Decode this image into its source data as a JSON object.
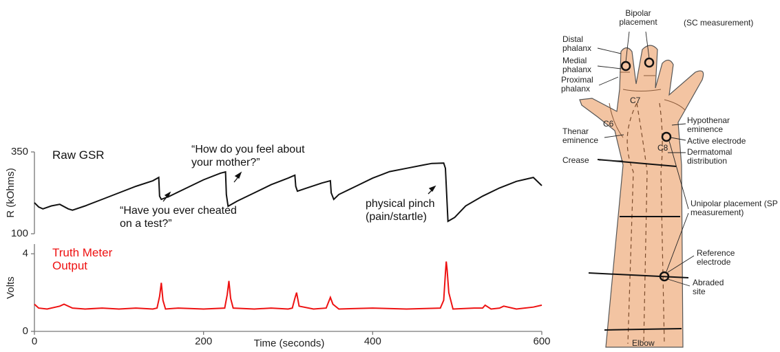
{
  "chart_data": [
    {
      "type": "line",
      "title": "Raw GSR",
      "y_label": "R (kOhms)",
      "color": "#111111",
      "xlim": [
        0,
        600
      ],
      "ylim": [
        100,
        350
      ],
      "yticks": [
        100,
        350
      ],
      "x": [
        0,
        5,
        10,
        20,
        30,
        40,
        45,
        60,
        80,
        100,
        120,
        140,
        147,
        148,
        150,
        160,
        180,
        200,
        220,
        226,
        227,
        229,
        240,
        260,
        280,
        300,
        308,
        309,
        311,
        320,
        340,
        350,
        351,
        354,
        360,
        380,
        400,
        420,
        440,
        460,
        470,
        484,
        486,
        489,
        497,
        510,
        530,
        550,
        570,
        590,
        600
      ],
      "values": [
        195,
        182,
        176,
        185,
        190,
        176,
        172,
        185,
        205,
        225,
        245,
        262,
        272,
        215,
        205,
        215,
        240,
        265,
        285,
        289,
        220,
        184,
        200,
        225,
        250,
        270,
        279,
        245,
        230,
        238,
        255,
        262,
        225,
        205,
        220,
        245,
        270,
        290,
        300,
        310,
        315,
        316,
        300,
        138,
        150,
        185,
        215,
        240,
        260,
        272,
        247
      ],
      "annotations": [
        "“Have you ever cheated on a test?”",
        "“How do you feel about your mother?”",
        "physical pinch (pain/startle)"
      ]
    },
    {
      "type": "line",
      "title": "Truth Meter Output",
      "y_label": "Volts",
      "x_label": "Time (seconds)",
      "color": "#ee1111",
      "xlim": [
        0,
        600
      ],
      "ylim": [
        0,
        4.5
      ],
      "yticks": [
        0,
        4
      ],
      "xticks": [
        0,
        200,
        400,
        600
      ],
      "x": [
        0,
        5,
        15,
        30,
        35,
        45,
        60,
        80,
        100,
        120,
        140,
        145,
        148,
        150,
        152,
        155,
        170,
        200,
        225,
        228,
        230,
        232,
        235,
        260,
        280,
        300,
        305,
        308,
        310,
        313,
        330,
        345,
        350,
        353,
        360,
        400,
        440,
        480,
        484,
        486,
        487,
        488,
        490,
        495,
        520,
        530,
        533,
        540,
        550,
        555,
        570,
        590,
        600
      ],
      "values": [
        1.4,
        1.2,
        1.15,
        1.3,
        1.4,
        1.2,
        1.15,
        1.2,
        1.15,
        1.2,
        1.15,
        1.2,
        1.8,
        2.5,
        1.6,
        1.15,
        1.2,
        1.15,
        1.2,
        1.9,
        2.6,
        1.7,
        1.2,
        1.15,
        1.2,
        1.15,
        1.2,
        1.7,
        2.0,
        1.3,
        1.15,
        1.2,
        1.75,
        1.4,
        1.15,
        1.2,
        1.15,
        1.2,
        1.6,
        3.0,
        3.6,
        3.2,
        2.0,
        1.15,
        1.2,
        1.2,
        1.35,
        1.15,
        1.2,
        1.3,
        1.15,
        1.25,
        1.35
      ]
    }
  ],
  "diagram": {
    "labels": [
      "Bipolar placement",
      "(SC measurement)",
      "Distal phalanx",
      "Medial phalanx",
      "Proximal phalanx",
      "C7",
      "C6",
      "C8",
      "Hypothenar eminence",
      "Active electrode",
      "Dermatomal distribution",
      "Thenar eminence",
      "Crease",
      "Unipolar placement (SP measurement)",
      "Reference electrode",
      "Abraded site",
      "Elbow"
    ]
  }
}
